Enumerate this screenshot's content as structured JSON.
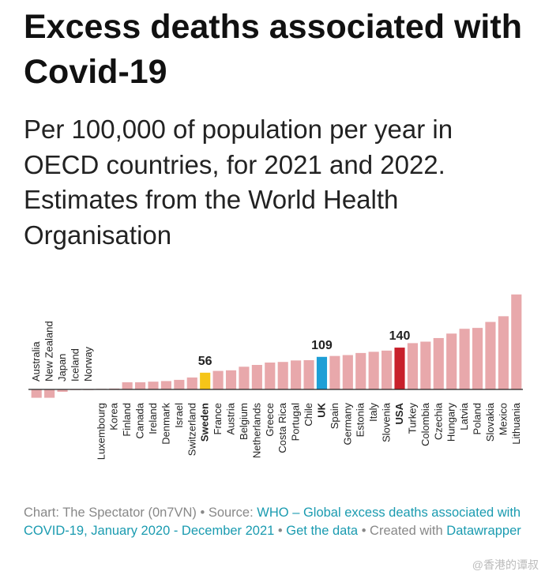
{
  "chart_data": {
    "type": "bar",
    "title": "Excess deaths associated with Covid-19",
    "subtitle": "Per 100,000 of population per year in OECD countries, for 2021 and 2022. Estimates from the World Health Organisation",
    "categories": [
      "Australia",
      "New Zealand",
      "Japan",
      "Iceland",
      "Norway",
      "Luxembourg",
      "Korea",
      "Finland",
      "Canada",
      "Ireland",
      "Denmark",
      "Israel",
      "Switzerland",
      "Sweden",
      "France",
      "Austria",
      "Belgium",
      "Netherlands",
      "Greece",
      "Costa Rica",
      "Portugal",
      "Chile",
      "UK",
      "Spain",
      "Germany",
      "Estonia",
      "Italy",
      "Slovenia",
      "USA",
      "Turkey",
      "Colombia",
      "Czechia",
      "Hungary",
      "Latvia",
      "Poland",
      "Slovakia",
      "Mexico",
      "Lithuania"
    ],
    "values": [
      -28,
      -28,
      -8,
      0,
      0,
      2,
      3,
      24,
      24,
      26,
      28,
      32,
      40,
      56,
      62,
      64,
      76,
      82,
      90,
      92,
      97,
      98,
      109,
      112,
      115,
      122,
      126,
      130,
      140,
      155,
      160,
      172,
      187,
      203,
      206,
      226,
      245,
      318
    ],
    "color": "#e8a8ab",
    "highlight": {
      "13": "#f5c518",
      "22": "#1e9fd6",
      "28": "#c8202b"
    },
    "ylim": [
      -30,
      320
    ],
    "footer": [
      {
        "text": "Chart: The Spectator (0n7VN) • Source: "
      },
      {
        "text": "WHO – Global excess deaths associated with COVID-19, January 2020 - December 2021",
        "link": true
      },
      {
        "text": " • "
      },
      {
        "text": "Get the data",
        "link": true
      },
      {
        "text": " • Created with "
      },
      {
        "text": "Datawrapper",
        "link": true
      }
    ],
    "watermark": "@香港的谭叔"
  }
}
